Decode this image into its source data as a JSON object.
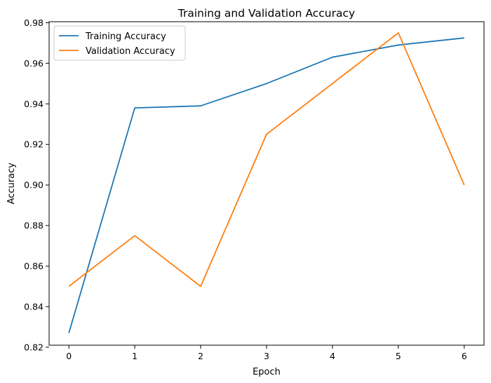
{
  "chart_data": {
    "type": "line",
    "title": "Training and Validation Accuracy",
    "xlabel": "Epoch",
    "ylabel": "Accuracy",
    "x": [
      0,
      1,
      2,
      3,
      4,
      5,
      6
    ],
    "xlim": [
      -0.3,
      6.3
    ],
    "ylim": [
      0.821,
      0.9805
    ],
    "xticks": [
      0,
      1,
      2,
      3,
      4,
      5,
      6
    ],
    "xtick_labels": [
      "0",
      "1",
      "2",
      "3",
      "4",
      "5",
      "6"
    ],
    "yticks": [
      0.82,
      0.84,
      0.86,
      0.88,
      0.9,
      0.92,
      0.94,
      0.96,
      0.98
    ],
    "ytick_labels": [
      "0.82",
      "0.84",
      "0.86",
      "0.88",
      "0.90",
      "0.92",
      "0.94",
      "0.96",
      "0.98"
    ],
    "grid": false,
    "legend_position": "upper-left",
    "series": [
      {
        "name": "Training Accuracy",
        "color": "#1f77b4",
        "values": [
          0.827,
          0.938,
          0.939,
          0.95,
          0.963,
          0.969,
          0.9725
        ]
      },
      {
        "name": "Validation Accuracy",
        "color": "#ff7f0e",
        "values": [
          0.85,
          0.875,
          0.85,
          0.925,
          0.95,
          0.975,
          0.9
        ]
      }
    ]
  }
}
